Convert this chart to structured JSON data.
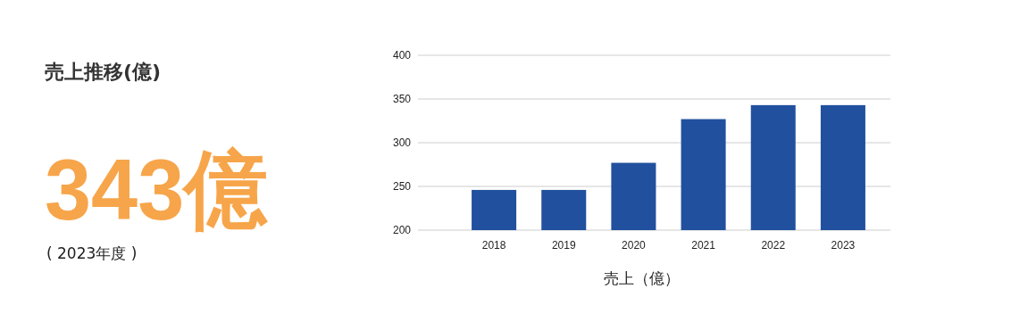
{
  "chart_data": {
    "type": "bar",
    "title": "売上推移(億)",
    "annotations": [
      "343億",
      "( 2023年度 )"
    ],
    "xlabel": "売上（億）",
    "categories": [
      "2018",
      "2019",
      "2020",
      "2021",
      "2022",
      "2023"
    ],
    "values": [
      246,
      246,
      277,
      327,
      343,
      343
    ],
    "color": "#21509e",
    "ylim": [
      200,
      400
    ],
    "yticks": [
      200,
      250,
      300,
      350,
      400
    ],
    "grid": "y"
  }
}
